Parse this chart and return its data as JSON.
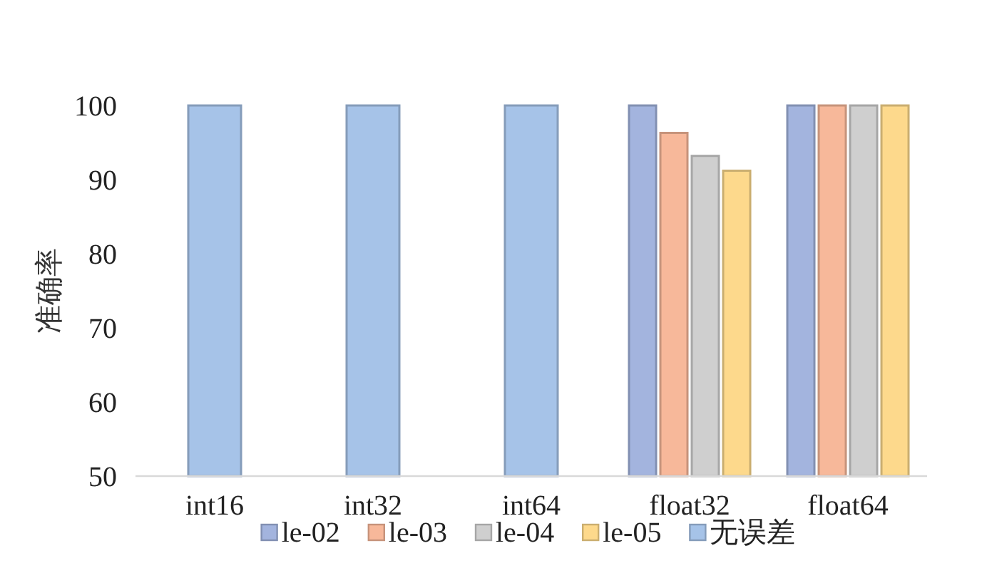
{
  "chart_data": {
    "type": "bar",
    "ylabel": "准确率",
    "categories": [
      "int16",
      "int32",
      "int64",
      "float32",
      "float64"
    ],
    "series": [
      {
        "name": "le-02",
        "color": "#a3b4de",
        "values": [
          null,
          null,
          null,
          100,
          100
        ]
      },
      {
        "name": "le-03",
        "color": "#f7b89a",
        "values": [
          null,
          null,
          null,
          96.3,
          100
        ]
      },
      {
        "name": "le-04",
        "color": "#cfcfcf",
        "values": [
          null,
          null,
          null,
          93.2,
          100
        ]
      },
      {
        "name": "le-05",
        "color": "#fdd98c",
        "values": [
          null,
          null,
          null,
          91.2,
          100
        ]
      },
      {
        "name": "无误差",
        "color": "#a6c3e8",
        "values": [
          100,
          100,
          100,
          null,
          null
        ]
      }
    ],
    "ylim": [
      50,
      100
    ],
    "yticks": [
      50,
      60,
      70,
      80,
      90,
      100
    ],
    "grid": false,
    "legend": "bottom"
  }
}
